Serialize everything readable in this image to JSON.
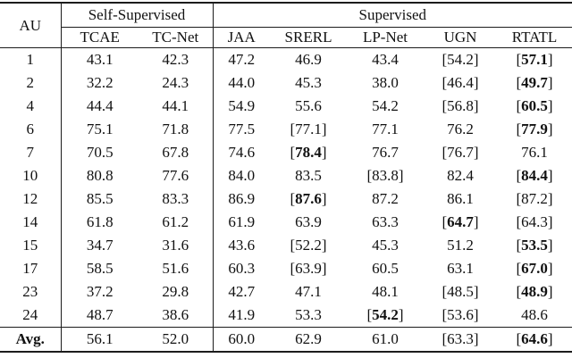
{
  "table": {
    "corner_label": "AU",
    "groups": [
      {
        "label": "Self-Supervised",
        "columns": [
          {
            "label": "TCAE"
          },
          {
            "label": "TC-Net"
          }
        ]
      },
      {
        "label": "Supervised",
        "columns": [
          {
            "label": "JAA"
          },
          {
            "label": "SRERL"
          },
          {
            "label": "LP-Net"
          },
          {
            "label": "UGN"
          },
          {
            "label": "RTATL",
            "bold": true
          }
        ]
      }
    ],
    "rows": [
      {
        "au": "1",
        "cells": [
          {
            "v": "43.1"
          },
          {
            "v": "42.3"
          },
          {
            "v": "47.2"
          },
          {
            "v": "46.9"
          },
          {
            "v": "43.4"
          },
          {
            "v": "54.2",
            "br": true
          },
          {
            "v": "57.1",
            "br": true,
            "b": true
          }
        ]
      },
      {
        "au": "2",
        "cells": [
          {
            "v": "32.2"
          },
          {
            "v": "24.3"
          },
          {
            "v": "44.0"
          },
          {
            "v": "45.3"
          },
          {
            "v": "38.0"
          },
          {
            "v": "46.4",
            "br": true
          },
          {
            "v": "49.7",
            "br": true,
            "b": true
          }
        ]
      },
      {
        "au": "4",
        "cells": [
          {
            "v": "44.4"
          },
          {
            "v": "44.1"
          },
          {
            "v": "54.9"
          },
          {
            "v": "55.6"
          },
          {
            "v": "54.2"
          },
          {
            "v": "56.8",
            "br": true
          },
          {
            "v": "60.5",
            "br": true,
            "b": true
          }
        ]
      },
      {
        "au": "6",
        "cells": [
          {
            "v": "75.1"
          },
          {
            "v": "71.8"
          },
          {
            "v": "77.5"
          },
          {
            "v": "77.1",
            "br": true
          },
          {
            "v": "77.1"
          },
          {
            "v": "76.2"
          },
          {
            "v": "77.9",
            "br": true,
            "b": true
          }
        ]
      },
      {
        "au": "7",
        "cells": [
          {
            "v": "70.5"
          },
          {
            "v": "67.8"
          },
          {
            "v": "74.6"
          },
          {
            "v": "78.4",
            "br": true,
            "b": true
          },
          {
            "v": "76.7"
          },
          {
            "v": "76.7",
            "br": true
          },
          {
            "v": "76.1"
          }
        ]
      },
      {
        "au": "10",
        "cells": [
          {
            "v": "80.8"
          },
          {
            "v": "77.6"
          },
          {
            "v": "84.0"
          },
          {
            "v": "83.5"
          },
          {
            "v": "83.8",
            "br": true
          },
          {
            "v": "82.4"
          },
          {
            "v": "84.4",
            "br": true,
            "b": true
          }
        ]
      },
      {
        "au": "12",
        "cells": [
          {
            "v": "85.5"
          },
          {
            "v": "83.3"
          },
          {
            "v": "86.9"
          },
          {
            "v": "87.6",
            "br": true,
            "b": true
          },
          {
            "v": "87.2"
          },
          {
            "v": "86.1"
          },
          {
            "v": "87.2",
            "br": true
          }
        ]
      },
      {
        "au": "14",
        "cells": [
          {
            "v": "61.8"
          },
          {
            "v": "61.2"
          },
          {
            "v": "61.9"
          },
          {
            "v": "63.9"
          },
          {
            "v": "63.3"
          },
          {
            "v": "64.7",
            "br": true,
            "b": true
          },
          {
            "v": "64.3",
            "br": true
          }
        ]
      },
      {
        "au": "15",
        "cells": [
          {
            "v": "34.7"
          },
          {
            "v": "31.6"
          },
          {
            "v": "43.6"
          },
          {
            "v": "52.2",
            "br": true
          },
          {
            "v": "45.3"
          },
          {
            "v": "51.2"
          },
          {
            "v": "53.5",
            "br": true,
            "b": true
          }
        ]
      },
      {
        "au": "17",
        "cells": [
          {
            "v": "58.5"
          },
          {
            "v": "51.6"
          },
          {
            "v": "60.3"
          },
          {
            "v": "63.9",
            "br": true
          },
          {
            "v": "60.5"
          },
          {
            "v": "63.1"
          },
          {
            "v": "67.0",
            "br": true,
            "b": true
          }
        ]
      },
      {
        "au": "23",
        "cells": [
          {
            "v": "37.2"
          },
          {
            "v": "29.8"
          },
          {
            "v": "42.7"
          },
          {
            "v": "47.1"
          },
          {
            "v": "48.1"
          },
          {
            "v": "48.5",
            "br": true
          },
          {
            "v": "48.9",
            "br": true,
            "b": true
          }
        ]
      },
      {
        "au": "24",
        "cells": [
          {
            "v": "48.7"
          },
          {
            "v": "38.6"
          },
          {
            "v": "41.9"
          },
          {
            "v": "53.3"
          },
          {
            "v": "54.2",
            "br": true,
            "b": true
          },
          {
            "v": "53.6",
            "br": true
          },
          {
            "v": "48.6"
          }
        ]
      }
    ],
    "avg_row": {
      "au": "Avg.",
      "bold": true,
      "cells": [
        {
          "v": "56.1"
        },
        {
          "v": "52.0"
        },
        {
          "v": "60.0"
        },
        {
          "v": "62.9"
        },
        {
          "v": "61.0"
        },
        {
          "v": "63.3",
          "br": true
        },
        {
          "v": "64.6",
          "br": true,
          "b": true
        }
      ]
    }
  }
}
